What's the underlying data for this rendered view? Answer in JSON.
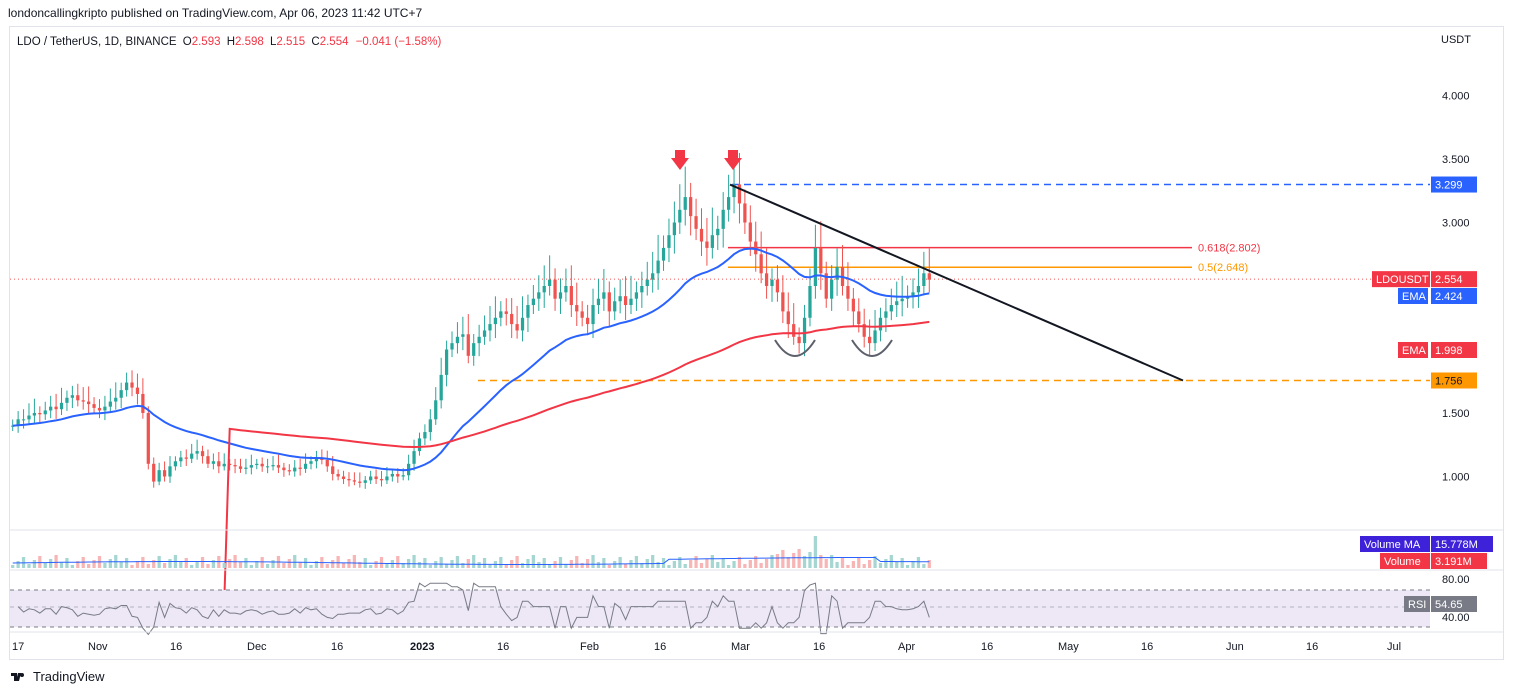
{
  "header": {
    "publisher": "londoncallingkripto published on TradingView.com, Apr 06, 2023 11:42 UTC+7"
  },
  "symbol_bar": {
    "name": "LDO / TetherUS, 1D, BINANCE",
    "o_key": "O",
    "o_val": "2.593",
    "h_key": "H",
    "h_val": "2.598",
    "l_key": "L",
    "l_val": "2.515",
    "c_key": "C",
    "c_val": "2.554",
    "change": "−0.041 (−1.58%)"
  },
  "price_unit": "USDT",
  "footer": {
    "brand": "TradingView"
  },
  "colors": {
    "up": "#26a69a",
    "down": "#ef5350",
    "ema_fast": "#2962ff",
    "ema_slow": "#f23645",
    "fib618": "#f23645",
    "fib05": "#ff9800",
    "resist": "#2962ff",
    "support": "#ff9800",
    "trendline": "#131722",
    "arrow": "#f23645",
    "rsi": "#787b86",
    "rsi_band": "#7e57c2",
    "vol_ma": "#2962ff"
  },
  "chart_data": [
    {
      "type": "candlestick",
      "title": "LDO / TetherUS, 1D, BINANCE",
      "y_axis": {
        "unit": "USDT",
        "ticks": [
          1.0,
          1.5,
          2.0,
          2.5,
          3.0,
          3.5,
          4.0
        ],
        "tick_labels": [
          "1.000",
          "1.500",
          "",
          "",
          "3.000",
          "3.500",
          "4.000"
        ]
      },
      "x_axis": {
        "tick_labels": [
          "17",
          "Nov",
          "16",
          "Dec",
          "16",
          "2023",
          "16",
          "Feb",
          "16",
          "Mar",
          "16",
          "Apr",
          "16",
          "May",
          "16",
          "Jun",
          "16",
          "Jul"
        ]
      },
      "ohlc_closes": [
        1.4,
        1.45,
        1.45,
        1.48,
        1.5,
        1.49,
        1.52,
        1.55,
        1.53,
        1.58,
        1.62,
        1.64,
        1.6,
        1.59,
        1.57,
        1.54,
        1.52,
        1.55,
        1.59,
        1.62,
        1.68,
        1.74,
        1.7,
        1.65,
        1.5,
        1.1,
        0.96,
        1.05,
        1.0,
        1.08,
        1.12,
        1.15,
        1.14,
        1.18,
        1.2,
        1.16,
        1.1,
        1.12,
        1.08,
        1.1,
        1.09,
        1.08,
        1.06,
        1.07,
        1.09,
        1.1,
        1.08,
        1.08,
        1.09,
        1.07,
        1.05,
        1.04,
        1.07,
        1.06,
        1.1,
        1.12,
        1.15,
        1.13,
        1.08,
        1.02,
        1.0,
        0.98,
        0.97,
        0.96,
        0.95,
        0.97,
        1.0,
        0.98,
        0.97,
        1.0,
        1.02,
        1.0,
        1.01,
        1.1,
        1.2,
        1.3,
        1.35,
        1.45,
        1.6,
        1.8,
        2.0,
        2.05,
        2.1,
        2.12,
        1.95,
        2.05,
        2.1,
        2.15,
        2.2,
        2.25,
        2.3,
        2.28,
        2.2,
        2.15,
        2.25,
        2.35,
        2.4,
        2.45,
        2.5,
        2.55,
        2.4,
        2.45,
        2.5,
        2.35,
        2.3,
        2.25,
        2.2,
        2.35,
        2.4,
        2.45,
        2.3,
        2.38,
        2.42,
        2.35,
        2.4,
        2.45,
        2.5,
        2.55,
        2.6,
        2.7,
        2.8,
        2.9,
        3.0,
        3.1,
        3.2,
        3.05,
        2.95,
        2.85,
        2.8,
        2.9,
        2.95,
        3.1,
        3.2,
        3.3,
        3.15,
        3.0,
        2.85,
        2.75,
        2.6,
        2.5,
        2.55,
        2.45,
        2.3,
        2.2,
        2.1,
        2.05,
        2.25,
        2.5,
        2.8,
        2.6,
        2.4,
        2.55,
        2.65,
        2.5,
        2.4,
        2.3,
        2.2,
        2.1,
        2.05,
        2.15,
        2.25,
        2.3,
        2.35,
        2.38,
        2.4,
        2.42,
        2.45,
        2.5,
        2.6,
        2.55
      ],
      "last_price": {
        "label": "LDOUSDT",
        "value": "2.554"
      },
      "ema_fast": {
        "label": "EMA",
        "value": "2.424"
      },
      "ema_slow": {
        "label": "EMA",
        "value": "1.998"
      },
      "levels": [
        {
          "name": "resistance",
          "value": 3.299,
          "label": "3.299"
        },
        {
          "name": "fib-0.618",
          "value": 2.802,
          "label": "0.618(2.802)"
        },
        {
          "name": "fib-0.5",
          "value": 2.648,
          "label": "0.5(2.648)"
        },
        {
          "name": "support",
          "value": 1.756,
          "label": "1.756"
        }
      ]
    },
    {
      "type": "bar",
      "title": "Volume",
      "volume_ma": {
        "label": "Volume MA",
        "value": "15.778M"
      },
      "volume": {
        "label": "Volume",
        "value": "3.191M"
      }
    },
    {
      "type": "line",
      "title": "RSI",
      "rsi": {
        "label": "RSI",
        "value": "54.65"
      },
      "tick_labels": [
        "80.00",
        "40.00"
      ]
    }
  ]
}
